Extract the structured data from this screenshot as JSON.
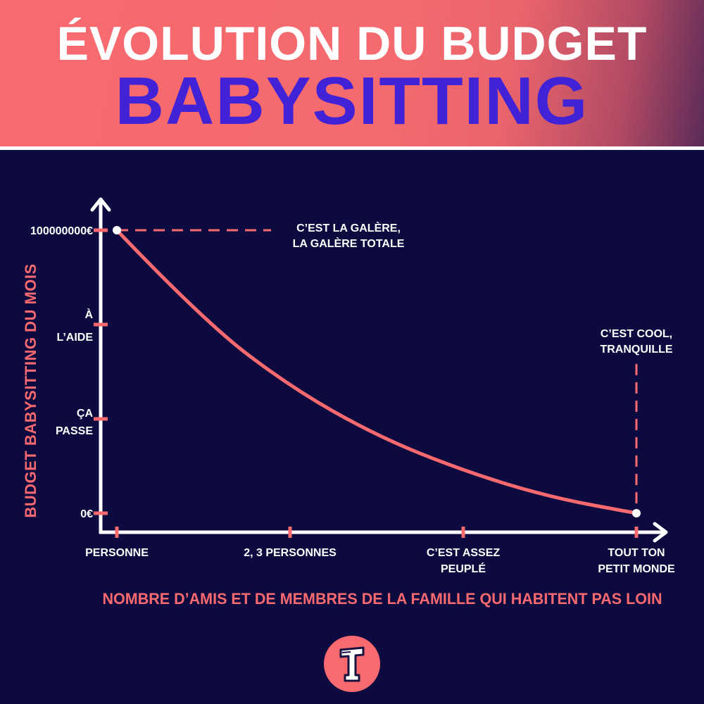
{
  "header": {
    "line1": "ÉVOLUTION DU BUDGET",
    "line2": "BABYSITTING"
  },
  "colors": {
    "accent": "#f86a6f",
    "background": "#0c0a3e",
    "title_blue": "#4222d6",
    "axis": "#ffffff"
  },
  "chart_data": {
    "type": "line",
    "ylabel": "BUDGET BABYSITTING DU MOIS",
    "xlabel": "NOMBRE D’AMIS ET DE MEMBRES DE LA FAMILLE QUI HABITENT PAS LOIN",
    "x_ticks": [
      [
        "PERSONNE"
      ],
      [
        "2, 3 PERSONNES"
      ],
      [
        "C’EST ASSEZ",
        "PEUPLÉ"
      ],
      [
        "TOUT TON",
        "PETIT MONDE"
      ]
    ],
    "y_ticks": [
      [
        "0€"
      ],
      [
        "ÇA",
        "PASSE"
      ],
      [
        "À",
        "L’AIDE"
      ],
      [
        "100000000€"
      ]
    ],
    "xlim": [
      0,
      3
    ],
    "ylim": [
      0,
      3
    ],
    "series": [
      {
        "x": [
          0.0,
          0.5,
          1.0,
          1.5,
          2.0,
          2.5,
          3.0
        ],
        "y": [
          3.0,
          2.04,
          1.34,
          0.82,
          0.45,
          0.17,
          0.0
        ]
      }
    ],
    "annotations": [
      {
        "text": [
          "C’EST LA GALÈRE,",
          "LA GALÈRE TOTALE"
        ],
        "x": 0.0,
        "y": 3.0
      },
      {
        "text": [
          "C’EST COOL,",
          "TRANQUILLE"
        ],
        "x": 3.0,
        "y": 0.0
      }
    ]
  }
}
